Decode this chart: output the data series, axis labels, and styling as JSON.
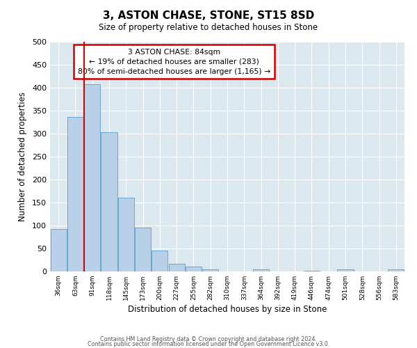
{
  "title": "3, ASTON CHASE, STONE, ST15 8SD",
  "subtitle": "Size of property relative to detached houses in Stone",
  "xlabel": "Distribution of detached houses by size in Stone",
  "ylabel": "Number of detached properties",
  "bin_labels": [
    "36sqm",
    "63sqm",
    "91sqm",
    "118sqm",
    "145sqm",
    "173sqm",
    "200sqm",
    "227sqm",
    "255sqm",
    "282sqm",
    "310sqm",
    "337sqm",
    "364sqm",
    "392sqm",
    "419sqm",
    "446sqm",
    "474sqm",
    "501sqm",
    "528sqm",
    "556sqm",
    "583sqm"
  ],
  "bar_heights": [
    93,
    337,
    407,
    303,
    160,
    95,
    45,
    17,
    10,
    5,
    0,
    0,
    5,
    0,
    0,
    2,
    0,
    5,
    0,
    0,
    5
  ],
  "bar_color": "#b8d0e8",
  "bar_edge_color": "#5a9ec8",
  "vline_color": "#cc0000",
  "vline_bar_index": 2,
  "annotation_box_text": "3 ASTON CHASE: 84sqm\n← 19% of detached houses are smaller (283)\n80% of semi-detached houses are larger (1,165) →",
  "annotation_box_color": "#cc0000",
  "ylim": [
    0,
    500
  ],
  "yticks": [
    0,
    50,
    100,
    150,
    200,
    250,
    300,
    350,
    400,
    450,
    500
  ],
  "footer_line1": "Contains HM Land Registry data © Crown copyright and database right 2024.",
  "footer_line2": "Contains public sector information licensed under the Open Government Licence v3.0.",
  "plot_bg_color": "#dce8f0",
  "fig_bg_color": "#ffffff",
  "grid_color": "#ffffff"
}
